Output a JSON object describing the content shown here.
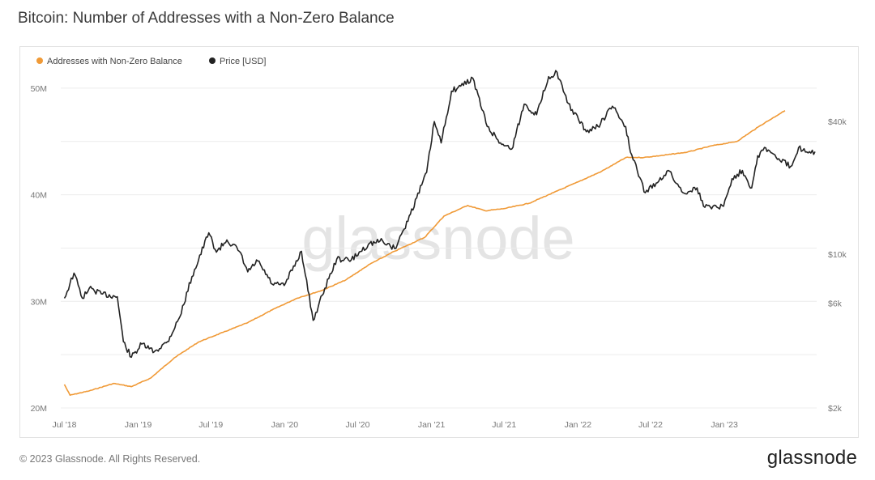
{
  "header": {
    "title": "Bitcoin: Number of Addresses with a Non-Zero Balance"
  },
  "footer": {
    "copyright": "© 2023 Glassnode. All Rights Reserved.",
    "brand": "glassnode"
  },
  "watermark": "glassnode",
  "colors": {
    "addresses": "#f09a37",
    "price": "#222222",
    "grid": "#ececec"
  },
  "chart_data": {
    "type": "line",
    "grid": true,
    "legend_position": "top-left",
    "series": [
      {
        "name": "Addresses with Non-Zero Balance",
        "axis": "left",
        "color": "#f09a37",
        "points": [
          [
            "2018-07-01",
            22.2
          ],
          [
            "2018-07-15",
            21.2
          ],
          [
            "2018-09-01",
            21.6
          ],
          [
            "2018-11-01",
            22.3
          ],
          [
            "2018-12-15",
            22.0
          ],
          [
            "2019-02-01",
            22.8
          ],
          [
            "2019-04-01",
            24.7
          ],
          [
            "2019-06-01",
            26.2
          ],
          [
            "2019-08-01",
            27.1
          ],
          [
            "2019-10-01",
            28.0
          ],
          [
            "2019-12-01",
            29.2
          ],
          [
            "2020-02-01",
            30.3
          ],
          [
            "2020-04-01",
            31.0
          ],
          [
            "2020-06-01",
            32.0
          ],
          [
            "2020-08-01",
            33.5
          ],
          [
            "2020-10-01",
            34.7
          ],
          [
            "2020-12-15",
            36.0
          ],
          [
            "2021-02-01",
            38.0
          ],
          [
            "2021-04-01",
            39.0
          ],
          [
            "2021-05-15",
            38.5
          ],
          [
            "2021-07-01",
            38.7
          ],
          [
            "2021-09-01",
            39.2
          ],
          [
            "2021-11-01",
            40.2
          ],
          [
            "2022-01-01",
            41.2
          ],
          [
            "2022-03-01",
            42.2
          ],
          [
            "2022-05-01",
            43.5
          ],
          [
            "2022-06-15",
            43.5
          ],
          [
            "2022-08-01",
            43.7
          ],
          [
            "2022-10-01",
            44.0
          ],
          [
            "2022-12-01",
            44.6
          ],
          [
            "2023-02-01",
            45.0
          ],
          [
            "2023-04-01",
            46.5
          ],
          [
            "2023-06-01",
            47.9
          ]
        ]
      },
      {
        "name": "Price [USD]",
        "axis": "right",
        "color": "#222222",
        "points": [
          [
            "2018-07-01",
            6300
          ],
          [
            "2018-07-25",
            8200
          ],
          [
            "2018-08-15",
            6300
          ],
          [
            "2018-09-01",
            7000
          ],
          [
            "2018-10-01",
            6600
          ],
          [
            "2018-11-10",
            6400
          ],
          [
            "2018-11-25",
            4000
          ],
          [
            "2018-12-15",
            3400
          ],
          [
            "2019-01-10",
            3900
          ],
          [
            "2019-02-10",
            3600
          ],
          [
            "2019-03-15",
            4000
          ],
          [
            "2019-04-15",
            5200
          ],
          [
            "2019-05-15",
            7900
          ],
          [
            "2019-06-26",
            12500
          ],
          [
            "2019-07-15",
            10200
          ],
          [
            "2019-08-10",
            11600
          ],
          [
            "2019-09-10",
            10300
          ],
          [
            "2019-10-01",
            8300
          ],
          [
            "2019-10-26",
            9300
          ],
          [
            "2019-12-01",
            7300
          ],
          [
            "2019-12-31",
            7200
          ],
          [
            "2020-02-12",
            10300
          ],
          [
            "2020-03-12",
            5000
          ],
          [
            "2020-04-10",
            7000
          ],
          [
            "2020-05-10",
            9500
          ],
          [
            "2020-06-15",
            9400
          ],
          [
            "2020-07-28",
            11100
          ],
          [
            "2020-09-01",
            11500
          ],
          [
            "2020-10-01",
            10600
          ],
          [
            "2020-10-25",
            13000
          ],
          [
            "2020-11-25",
            18000
          ],
          [
            "2020-12-20",
            23500
          ],
          [
            "2021-01-08",
            40000
          ],
          [
            "2021-01-25",
            32000
          ],
          [
            "2021-02-20",
            55000
          ],
          [
            "2021-03-15",
            58000
          ],
          [
            "2021-04-14",
            63000
          ],
          [
            "2021-05-20",
            38000
          ],
          [
            "2021-06-22",
            32000
          ],
          [
            "2021-07-20",
            30000
          ],
          [
            "2021-08-20",
            48000
          ],
          [
            "2021-09-20",
            43000
          ],
          [
            "2021-10-20",
            64000
          ],
          [
            "2021-11-10",
            67000
          ],
          [
            "2021-12-05",
            49000
          ],
          [
            "2022-01-22",
            36000
          ],
          [
            "2022-02-20",
            38000
          ],
          [
            "2022-03-28",
            47000
          ],
          [
            "2022-04-30",
            38000
          ],
          [
            "2022-05-12",
            29000
          ],
          [
            "2022-06-18",
            19000
          ],
          [
            "2022-07-15",
            21000
          ],
          [
            "2022-08-14",
            24000
          ],
          [
            "2022-09-20",
            19000
          ],
          [
            "2022-10-25",
            20000
          ],
          [
            "2022-11-10",
            16500
          ],
          [
            "2022-12-30",
            16500
          ],
          [
            "2023-01-20",
            22000
          ],
          [
            "2023-02-15",
            24000
          ],
          [
            "2023-03-10",
            20000
          ],
          [
            "2023-03-25",
            28000
          ],
          [
            "2023-04-14",
            30400
          ],
          [
            "2023-05-10",
            27500
          ],
          [
            "2023-06-15",
            25000
          ],
          [
            "2023-07-05",
            30500
          ],
          [
            "2023-08-01",
            29200
          ],
          [
            "2023-08-15",
            29200
          ]
        ]
      }
    ],
    "x_axis": {
      "range": [
        "2018-06-22",
        "2023-08-19"
      ],
      "tick_labels": [
        "Jul '18",
        "Jan '19",
        "Jul '19",
        "Jan '20",
        "Jul '20",
        "Jan '21",
        "Jul '21",
        "Jan '22",
        "Jul '22",
        "Jan '23"
      ],
      "tick_dates": [
        "2018-07-01",
        "2019-01-01",
        "2019-07-01",
        "2020-01-01",
        "2020-07-01",
        "2021-01-01",
        "2021-07-01",
        "2022-01-01",
        "2022-07-01",
        "2023-01-01"
      ]
    },
    "y_left": {
      "range": [
        20,
        52.5
      ],
      "tick_labels": [
        "20M",
        "30M",
        "40M",
        "50M"
      ],
      "tick_values": [
        20,
        30,
        40,
        50
      ]
    },
    "y_right": {
      "scale": "log",
      "range": [
        2000,
        75000
      ],
      "tick_labels": [
        "$2k",
        "$6k",
        "$10k",
        "$40k"
      ],
      "tick_values": [
        2000,
        6000,
        10000,
        40000
      ]
    }
  }
}
